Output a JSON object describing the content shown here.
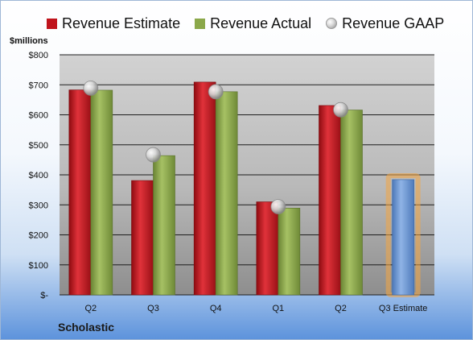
{
  "colors": {
    "estimate": "#c0141c",
    "actual": "#8ba84a",
    "gaap": "#c9c9c9",
    "future": "#6f9bd9",
    "highlight": "#f4a641"
  },
  "chart_data": {
    "type": "bar",
    "unit_label": "$millions",
    "categories": [
      "Q2",
      "Q3",
      "Q4",
      "Q1",
      "Q2",
      "Q3 Estimate"
    ],
    "series": [
      {
        "name": "Revenue Estimate",
        "values": [
          683,
          381,
          709,
          310,
          631,
          null
        ]
      },
      {
        "name": "Revenue Actual",
        "values": [
          682,
          464,
          677,
          289,
          616,
          null
        ]
      },
      {
        "name": "Revenue GAAP",
        "values": [
          689,
          467,
          677,
          294,
          617,
          null
        ]
      }
    ],
    "forecast": {
      "category": "Q3 Estimate",
      "value": 384
    },
    "ylim": [
      0,
      800
    ],
    "yticks": [
      0,
      100,
      200,
      300,
      400,
      500,
      600,
      700,
      800
    ],
    "ytick_labels": [
      "$-",
      "$100",
      "$200",
      "$300",
      "$400",
      "$500",
      "$600",
      "$700",
      "$800"
    ],
    "grid": true,
    "legend_position": "top",
    "company": "Scholastic"
  }
}
